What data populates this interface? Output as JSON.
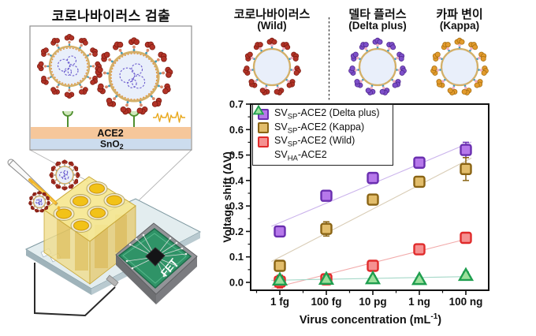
{
  "left_panel": {
    "title": "코로나바이러스 검출",
    "ace2_label": "ACE2",
    "sno2_pre": "SnO",
    "sno2_sub": "2",
    "fet_label": "FET"
  },
  "virus_header": {
    "viruses": [
      {
        "name": "코로나바이러스",
        "variant": "(Wild)",
        "spike_color": "#b23327",
        "spike_dark": "#7f1d12"
      },
      {
        "name": "델타 플러스",
        "variant": "(Delta plus)",
        "spike_color": "#7d4fc9",
        "spike_dark": "#50288f"
      },
      {
        "name": "카파 변이",
        "variant": "(Kappa)",
        "spike_color": "#e39b2d",
        "spike_dark": "#a86f10"
      }
    ]
  },
  "chart_data": {
    "type": "scatter",
    "title": "",
    "xlabel_pre": "Virus concentration (mL",
    "xlabel_sup": "-1",
    "xlabel_post": ")",
    "ylabel": "Voltage shift (ΔV)",
    "categories": [
      "1 fg",
      "100 fg",
      "10 pg",
      "1 ng",
      "100 ng"
    ],
    "ylim": [
      -0.031,
      0.7
    ],
    "yticks": [
      0.0,
      0.1,
      0.2,
      0.3,
      0.4,
      0.5,
      0.6,
      0.7
    ],
    "grid": false,
    "legend_position": "top-left",
    "series": [
      {
        "label_pre": "SV",
        "label_sub": "SP",
        "label_post": "-ACE2 (Delta plus)",
        "marker": "square",
        "fill": "#b678ea",
        "stroke": "#6a2fb0",
        "line_color": "#cbb4ec",
        "values": [
          0.2,
          0.34,
          0.41,
          0.47,
          0.52
        ],
        "errors": [
          0.012,
          0.008,
          0.01,
          0.012,
          0.03
        ]
      },
      {
        "label_pre": "SV",
        "label_sub": "SP",
        "label_post": "-ACE2 (Kappa)",
        "marker": "square",
        "fill": "#e2bd6b",
        "stroke": "#8a6414",
        "line_color": "#d9cdb6",
        "values": [
          0.065,
          0.21,
          0.325,
          0.395,
          0.445
        ],
        "errors": [
          0.02,
          0.028,
          0.012,
          0.012,
          0.045
        ]
      },
      {
        "label_pre": "SV",
        "label_sub": "SP",
        "label_post": "-ACE2 (Wild)",
        "marker": "square",
        "fill": "#f59191",
        "stroke": "#e02b2b",
        "line_color": "#f2aaaa",
        "values": [
          0.003,
          0.012,
          0.065,
          0.13,
          0.175
        ],
        "errors": [
          0.025,
          0.012,
          0.012,
          0.015,
          0.018
        ]
      },
      {
        "label_pre": "SV",
        "label_sub": "HA",
        "label_post": "-ACE2",
        "marker": "triangle",
        "fill": "#9be09b",
        "stroke": "#1f9e4f",
        "line_color": "#a5d8c8",
        "values": [
          0.01,
          0.013,
          0.015,
          0.012,
          0.028
        ],
        "errors": [
          0.012,
          0.013,
          0.01,
          0.008,
          0.012
        ]
      }
    ]
  }
}
